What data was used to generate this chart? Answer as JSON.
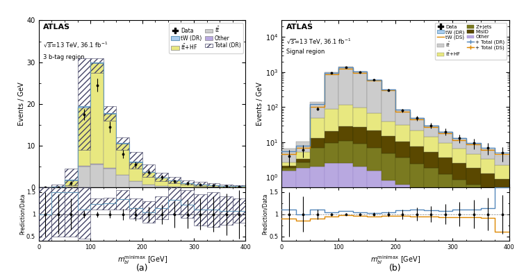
{
  "panel_a": {
    "title": "ATLAS",
    "subtitle1": "\\u221as=13 TeV, 36.1 fb\\u207b\\u00b9",
    "subtitle2": "3 b-tag region",
    "ylabel_main": "Events / GeV",
    "ylabel_ratio": "Prediction/Data",
    "xlabel": "$m_{bl}^{\\mathrm{minimax}}$ [GeV]",
    "xlim": [
      0,
      400
    ],
    "ylim_main": [
      0,
      40
    ],
    "ylim_ratio": [
      0.4,
      1.6
    ],
    "bin_edges": [
      0,
      25,
      50,
      75,
      100,
      125,
      150,
      175,
      200,
      225,
      250,
      275,
      300,
      325,
      350,
      375,
      400
    ],
    "ttbar_HF": [
      0.05,
      0.3,
      1.5,
      14.0,
      24.0,
      13.0,
      7.5,
      4.5,
      3.0,
      2.0,
      1.5,
      1.0,
      0.7,
      0.5,
      0.4,
      0.3
    ],
    "ttbar": [
      0.0,
      0.0,
      0.2,
      5.0,
      5.5,
      4.5,
      3.0,
      1.5,
      0.7,
      0.4,
      0.25,
      0.15,
      0.1,
      0.07,
      0.05,
      0.03
    ],
    "other": [
      0.0,
      0.0,
      0.1,
      0.2,
      0.2,
      0.2,
      0.1,
      0.1,
      0.05,
      0.02,
      0.0,
      0.0,
      0.0,
      0.0,
      0.0,
      0.0
    ],
    "tW_DR": [
      0.0,
      0.0,
      0.05,
      0.3,
      0.3,
      0.2,
      0.1,
      0.05,
      0.03,
      0.02,
      0.01,
      0.0,
      0.0,
      0.0,
      0.0,
      0.0
    ],
    "total_DR": [
      0.05,
      0.3,
      1.85,
      19.5,
      30.0,
      17.9,
      10.7,
      6.2,
      3.8,
      2.44,
      1.76,
      1.15,
      0.8,
      0.57,
      0.45,
      0.33
    ],
    "total_DR_hi": [
      0.05,
      0.8,
      4.5,
      31.0,
      31.0,
      19.5,
      12.0,
      8.5,
      5.5,
      3.5,
      2.5,
      1.7,
      1.4,
      1.0,
      0.8,
      0.6
    ],
    "total_DR_lo": [
      0.0,
      0.1,
      0.5,
      9.0,
      27.5,
      16.0,
      9.0,
      4.5,
      2.5,
      1.5,
      1.1,
      0.7,
      0.4,
      0.2,
      0.15,
      0.1
    ],
    "data_vals": [
      0.05,
      0.15,
      1.0,
      17.5,
      24.5,
      14.5,
      8.0,
      5.5,
      3.8,
      2.5,
      1.5,
      1.0,
      0.7,
      0.55,
      0.4,
      0.3
    ],
    "data_err": [
      0.05,
      0.1,
      0.5,
      1.4,
      1.6,
      1.3,
      1.0,
      0.8,
      0.65,
      0.55,
      0.45,
      0.38,
      0.32,
      0.28,
      0.24,
      0.2
    ],
    "ratio_DR": [
      1.0,
      1.5,
      1.5,
      1.1,
      1.23,
      1.24,
      1.34,
      1.13,
      1.05,
      1.14,
      1.33,
      1.22,
      1.1,
      1.11,
      1.08,
      1.07
    ],
    "ratio_DR_hi": [
      1.6,
      2.0,
      2.0,
      1.6,
      1.35,
      1.37,
      1.55,
      1.35,
      1.3,
      1.4,
      1.65,
      1.55,
      1.45,
      1.5,
      1.4,
      1.35
    ],
    "ratio_DR_lo": [
      0.4,
      0.5,
      0.5,
      0.45,
      1.1,
      1.1,
      1.1,
      0.9,
      0.8,
      0.88,
      1.0,
      0.92,
      0.75,
      0.72,
      0.76,
      0.8
    ],
    "data_ratio": [
      1.0,
      1.0,
      1.0,
      1.0,
      1.0,
      1.0,
      1.0,
      1.0,
      1.0,
      1.0,
      1.0,
      1.0,
      1.0,
      1.0,
      1.0,
      1.0
    ],
    "data_ratio_err": [
      0.5,
      0.45,
      0.35,
      0.08,
      0.065,
      0.09,
      0.125,
      0.145,
      0.17,
      0.22,
      0.3,
      0.32,
      0.35,
      0.4,
      0.47,
      0.55
    ],
    "colors": {
      "ttbar_HF": "#e8e880",
      "ttbar": "#cccccc",
      "other": "#b8a8e0",
      "tW_DR_fill": "#aaccee",
      "tW_DR_edge": "#6699bb",
      "total_DR_hatch": "#444466",
      "data": "black"
    }
  },
  "panel_b": {
    "title": "ATLAS",
    "subtitle1": "\\u221as=13 TeV, 36.1 fb\\u207b\\u00b9",
    "subtitle2": "Signal region",
    "ylabel_main": "Events / GeV",
    "ylabel_ratio": "Prediction/Data",
    "xlabel": "$m_{bl}^{\\mathrm{minimax}}$ [GeV]",
    "xlim": [
      0,
      400
    ],
    "ylim_log": [
      0.5,
      30000
    ],
    "ylim_ratio": [
      0.4,
      1.6
    ],
    "bin_edges": [
      0,
      25,
      50,
      75,
      100,
      125,
      150,
      175,
      200,
      225,
      250,
      275,
      300,
      325,
      350,
      375,
      400
    ],
    "ttbar": [
      4.0,
      5.0,
      90.0,
      900.0,
      1300.0,
      950.0,
      550.0,
      280.0,
      55.0,
      28.0,
      16.0,
      10.0,
      6.5,
      4.5,
      3.0,
      2.0
    ],
    "ttbar_HF": [
      0.5,
      2.0,
      35.0,
      70.0,
      90.0,
      70.0,
      45.0,
      25.0,
      20.0,
      14.0,
      9.0,
      6.0,
      4.0,
      2.8,
      2.0,
      1.3
    ],
    "Zjets": [
      0.3,
      0.8,
      5.0,
      7.0,
      8.5,
      7.0,
      5.5,
      4.0,
      3.0,
      2.0,
      1.5,
      1.0,
      0.7,
      0.5,
      0.35,
      0.25
    ],
    "MisID": [
      0.3,
      0.7,
      6.0,
      11.0,
      18.0,
      18.0,
      15.0,
      10.0,
      7.0,
      5.0,
      3.5,
      2.5,
      1.7,
      1.2,
      0.85,
      0.6
    ],
    "other": [
      1.5,
      1.8,
      2.0,
      2.5,
      2.5,
      2.0,
      1.5,
      0.8,
      0.6,
      0.4,
      0.3,
      0.2,
      0.15,
      0.1,
      0.08,
      0.05
    ],
    "tW_DR_line": [
      3.5,
      4.0,
      4.5,
      5.0,
      5.5,
      5.5,
      5.0,
      4.5,
      4.0,
      3.5,
      3.0,
      2.5,
      2.0,
      1.7,
      1.4,
      1.1
    ],
    "tW_DS_line": [
      3.0,
      3.5,
      4.0,
      4.5,
      5.0,
      5.0,
      4.5,
      4.0,
      3.5,
      3.0,
      2.5,
      2.1,
      1.7,
      1.4,
      1.1,
      0.9
    ],
    "total_DR": [
      5.5,
      8.0,
      120.0,
      970.0,
      1400.0,
      1030.0,
      610.0,
      320.0,
      85.0,
      50.0,
      30.0,
      20.0,
      13.0,
      9.5,
      7.0,
      5.0
    ],
    "total_DS": [
      4.5,
      7.0,
      100.0,
      880.0,
      1280.0,
      960.0,
      570.0,
      300.0,
      75.0,
      44.0,
      27.0,
      18.0,
      11.5,
      8.5,
      6.0,
      4.5
    ],
    "data_vals": [
      4.0,
      6.0,
      90.0,
      950.0,
      1350.0,
      1000.0,
      600.0,
      310.0,
      80.0,
      48.0,
      30.0,
      20.0,
      13.0,
      9.5,
      7.0,
      5.0
    ],
    "data_err": [
      2.0,
      2.4,
      9.5,
      31.0,
      37.0,
      32.0,
      25.0,
      18.0,
      9.0,
      7.0,
      5.5,
      4.5,
      3.6,
      3.1,
      2.6,
      2.2
    ],
    "ratio_DR": [
      1.1,
      1.0,
      1.1,
      1.05,
      1.08,
      1.04,
      1.03,
      1.05,
      1.09,
      1.1,
      1.09,
      1.08,
      1.1,
      1.11,
      1.13,
      1.6
    ],
    "ratio_DS": [
      0.9,
      0.85,
      0.9,
      0.95,
      0.98,
      0.96,
      0.95,
      0.97,
      0.96,
      0.95,
      0.95,
      0.94,
      0.93,
      0.93,
      0.92,
      0.6
    ],
    "data_ratio_err": [
      0.5,
      0.4,
      0.11,
      0.033,
      0.027,
      0.032,
      0.042,
      0.058,
      0.113,
      0.146,
      0.183,
      0.225,
      0.277,
      0.326,
      0.371,
      0.44
    ],
    "colors": {
      "ttbar": "#cccccc",
      "ttbar_HF": "#e8e880",
      "Zjets": "#7a7a20",
      "MisID": "#5a4800",
      "other": "#b8a8e0",
      "tW_DR_fill": "#aaccee",
      "tW_DR_edge": "#6699bb",
      "total_DR_line": "#5588bb",
      "total_DS_line": "#dd8800",
      "data": "black"
    }
  }
}
